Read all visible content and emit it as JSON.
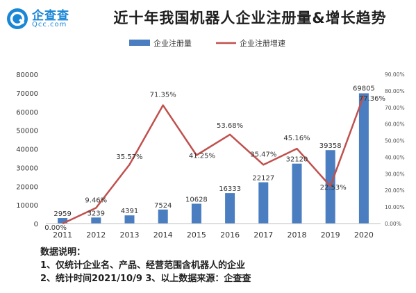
{
  "logo": {
    "name": "企查查",
    "domain": "Qcc.com"
  },
  "header": {
    "title": "近十年我国机器人企业注册量&增长趋势"
  },
  "chart_data": {
    "type": "bar",
    "title": "近十年我国机器人企业注册量&增长趋势",
    "categories": [
      "2011",
      "2012",
      "2013",
      "2014",
      "2015",
      "2016",
      "2017",
      "2018",
      "2019",
      "2020"
    ],
    "series": [
      {
        "name": "企业注册量",
        "type": "bar",
        "axis": "left",
        "color": "#4a7ec0",
        "values": [
          2959,
          3239,
          4391,
          7524,
          10628,
          16333,
          22127,
          32120,
          39358,
          69805
        ],
        "labels": [
          "2959",
          "3239",
          "4391",
          "7524",
          "10628",
          "16333",
          "22127",
          "32120",
          "39358",
          "69805"
        ]
      },
      {
        "name": "企业注册增速",
        "type": "line",
        "axis": "right",
        "color": "#c0504d",
        "values": [
          0.0,
          9.46,
          35.57,
          71.35,
          41.25,
          53.68,
          35.47,
          45.16,
          22.53,
          77.36
        ],
        "labels": [
          "0.00%",
          "9.46%",
          "35.57%",
          "71.35%",
          "41.25%",
          "53.68%",
          "35.47%",
          "45.16%",
          "22.53%",
          "77.36%"
        ]
      }
    ],
    "left_axis": {
      "ylim": [
        0,
        80000
      ],
      "ticks": [
        0,
        10000,
        20000,
        30000,
        40000,
        50000,
        60000,
        70000,
        80000
      ],
      "tick_labels": [
        "0",
        "10000",
        "20000",
        "30000",
        "40000",
        "50000",
        "60000",
        "70000",
        "80000"
      ]
    },
    "right_axis": {
      "ylim": [
        0,
        90
      ],
      "ticks": [
        0,
        10,
        20,
        30,
        40,
        50,
        60,
        70,
        80,
        90
      ],
      "tick_labels": [
        "0.00%",
        "10.00%",
        "20.00%",
        "30.00%",
        "40.00%",
        "50.00%",
        "60.00%",
        "70.00%",
        "80.00%",
        "90.00%"
      ]
    },
    "legend_position": "top-center",
    "grid": false
  },
  "notes": {
    "heading": "数据说明：",
    "line1": "1、仅统计企业名、产品、经营范围含机器人的企业",
    "line2": "2、统计时间2021/10/9    3、以上数据来源：企查查"
  }
}
